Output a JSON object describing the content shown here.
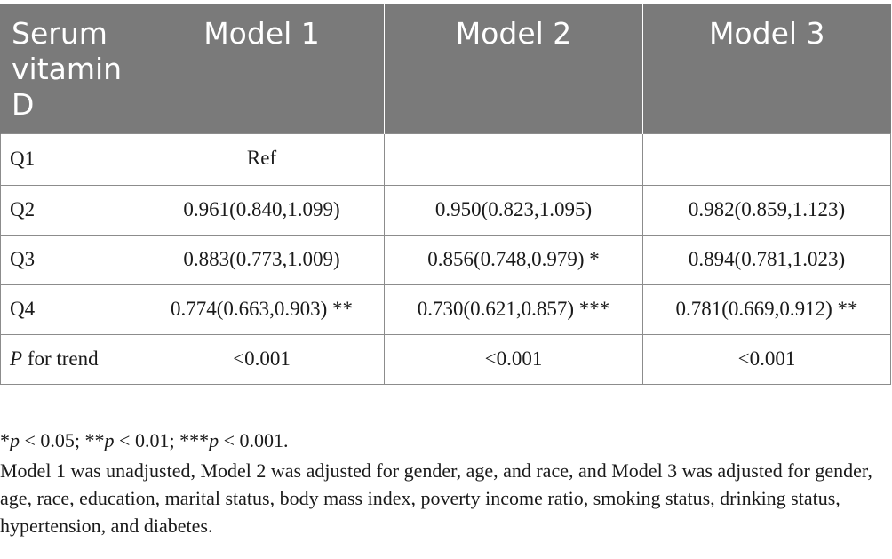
{
  "table": {
    "headers": [
      "Serum vitamin D",
      "Model 1",
      "Model 2",
      "Model 3"
    ],
    "rows": [
      {
        "label": "Q1",
        "label_italic_prefix": "",
        "cells": [
          "Ref",
          "",
          ""
        ]
      },
      {
        "label": "Q2",
        "label_italic_prefix": "",
        "cells": [
          "0.961(0.840,1.099)",
          "0.950(0.823,1.095)",
          "0.982(0.859,1.123)"
        ]
      },
      {
        "label": "Q3",
        "label_italic_prefix": "",
        "cells": [
          "0.883(0.773,1.009)",
          "0.856(0.748,0.979) *",
          "0.894(0.781,1.023)"
        ]
      },
      {
        "label": "Q4",
        "label_italic_prefix": "",
        "cells": [
          "0.774(0.663,0.903) **",
          "0.730(0.621,0.857) ***",
          "0.781(0.669,0.912) **"
        ]
      },
      {
        "label": " for trend",
        "label_italic_prefix": "P",
        "cells": [
          "<0.001",
          "<0.001",
          "<0.001"
        ]
      }
    ]
  },
  "footnotes": {
    "significance": [
      {
        "stars": "*",
        "p": "p",
        "rest": " < 0.05; "
      },
      {
        "stars": "**",
        "p": "p",
        "rest": " < 0.01; "
      },
      {
        "stars": "***",
        "p": "p",
        "rest": " < 0.001."
      }
    ],
    "models": "Model 1 was unadjusted, Model 2 was adjusted for gender, age, and race, and Model 3 was adjusted for gender, age, race, education, marital status, body mass index, poverty income ratio, smoking status, drinking status, hypertension, and diabetes."
  }
}
